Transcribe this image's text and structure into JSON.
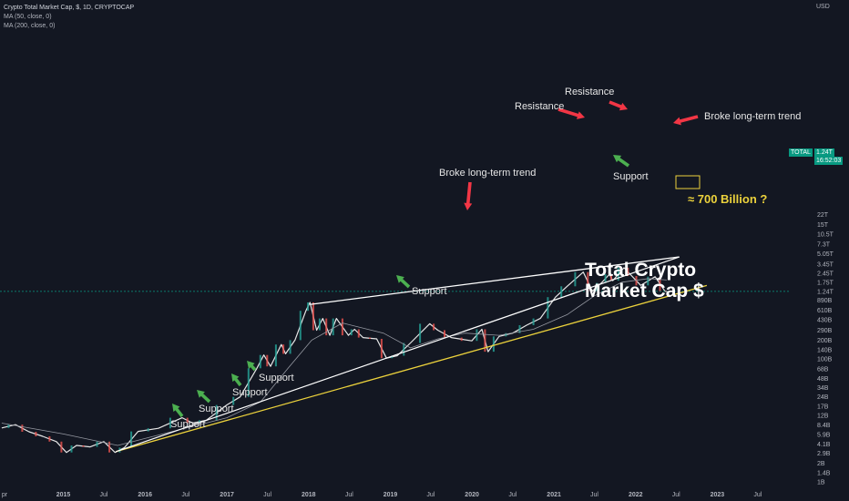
{
  "legend": {
    "title": "Crypto Total Market Cap, $, 1D, CRYPTOCAP",
    "ma50": "MA (50, close, 0)",
    "ma200": "MA (200, close, 0)"
  },
  "price_badge": {
    "symbol": "TOTAL",
    "value": "1.24T",
    "countdown": "16:52:03"
  },
  "annotations": {
    "title": "Total Crypto Market Cap $",
    "projection": "≈ 700 Billion ?",
    "resistance_1": "Resistance",
    "resistance_2": "Resistance",
    "broke_trend_1": "Broke long-term trend",
    "broke_trend_2": "Broke long-term trend",
    "support_1": "Support",
    "support_2": "Support",
    "support_3": "Support",
    "support_4": "Support",
    "support_5": "Support",
    "support_6": "Support"
  },
  "colors": {
    "background": "#131722",
    "price_line": "#e6e6e6",
    "candle_up": "#26a69a",
    "candle_down": "#ef5350",
    "trendline": "#ffffff",
    "support_line": "#ecd23c",
    "arrow_resistance": "#f23645",
    "arrow_support": "#4caf50",
    "ma_line": "#9598a1",
    "current_price_line": "#089981"
  },
  "chart_data": {
    "type": "line",
    "x_axis": {
      "tick_labels": [
        "pr",
        "2015",
        "Jul",
        "2016",
        "Jul",
        "2017",
        "Jul",
        "2018",
        "Jul",
        "2019",
        "Jul",
        "2020",
        "Jul",
        "2021",
        "Jul",
        "2022",
        "Jul",
        "2023",
        "Jul"
      ]
    },
    "y_axis": {
      "scale": "log",
      "unit": "USD",
      "tick_labels": [
        "22T",
        "15T",
        "10.5T",
        "7.3T",
        "5.05T",
        "3.45T",
        "2.45T",
        "1.75T",
        "1.24T",
        "890B",
        "610B",
        "430B",
        "290B",
        "200B",
        "140B",
        "100B",
        "68B",
        "48B",
        "34B",
        "24B",
        "17B",
        "12B",
        "8.4B",
        "5.9B",
        "4.1B",
        "2.9B",
        "2B",
        "1.4B",
        "1B"
      ],
      "tick_values": [
        22000000000000.0,
        15000000000000.0,
        10500000000000.0,
        7300000000000.0,
        5050000000000.0,
        3450000000000.0,
        2450000000000.0,
        1750000000000.0,
        1240000000000.0,
        890000000000.0,
        610000000000.0,
        430000000000.0,
        290000000000.0,
        200000000000.0,
        140000000000.0,
        100000000000.0,
        68000000000.0,
        48000000000.0,
        34000000000.0,
        24000000000.0,
        17000000000.0,
        12000000000.0,
        8400000000.0,
        5900000000.0,
        4100000000.0,
        2900000000.0,
        2000000000.0,
        1400000000.0,
        1000000000.0
      ]
    },
    "grid": false,
    "series": [
      {
        "values_in_usd": [
          [
            "2014-04-01",
            7500000000.0
          ],
          [
            "2014-06-01",
            8500000000.0
          ],
          [
            "2014-08-01",
            6500000000.0
          ],
          [
            "2014-10-01",
            5500000000.0
          ],
          [
            "2014-12-01",
            4500000000.0
          ],
          [
            "2015-01-15",
            3000000000.0
          ],
          [
            "2015-03-01",
            3900000000.0
          ],
          [
            "2015-05-01",
            3700000000.0
          ],
          [
            "2015-07-01",
            4500000000.0
          ],
          [
            "2015-08-20",
            3000000000.0
          ],
          [
            "2015-10-01",
            3600000000.0
          ],
          [
            "2015-12-01",
            6600000000.0
          ],
          [
            "2016-03-01",
            7400000000.0
          ],
          [
            "2016-06-15",
            11000000000.0
          ],
          [
            "2016-08-01",
            9000000000.0
          ],
          [
            "2016-10-01",
            10000000000.0
          ],
          [
            "2016-12-31",
            17700000000.0
          ],
          [
            "2017-03-01",
            24000000000.0
          ],
          [
            "2017-05-15",
            70000000000.0
          ],
          [
            "2017-06-15",
            115000000000.0
          ],
          [
            "2017-07-15",
            75000000000.0
          ],
          [
            "2017-09-01",
            170000000000.0
          ],
          [
            "2017-09-20",
            120000000000.0
          ],
          [
            "2017-11-01",
            200000000000.0
          ],
          [
            "2017-12-20",
            600000000000.0
          ],
          [
            "2018-01-07",
            820000000000.0
          ],
          [
            "2018-02-06",
            290000000000.0
          ],
          [
            "2018-03-05",
            450000000000.0
          ],
          [
            "2018-04-06",
            240000000000.0
          ],
          [
            "2018-05-05",
            450000000000.0
          ],
          [
            "2018-06-28",
            240000000000.0
          ],
          [
            "2018-07-25",
            300000000000.0
          ],
          [
            "2018-09-01",
            220000000000.0
          ],
          [
            "2018-11-01",
            210000000000.0
          ],
          [
            "2018-12-15",
            102000000000.0
          ],
          [
            "2019-02-01",
            112000000000.0
          ],
          [
            "2019-04-01",
            180000000000.0
          ],
          [
            "2019-06-26",
            370000000000.0
          ],
          [
            "2019-08-01",
            290000000000.0
          ],
          [
            "2019-10-01",
            220000000000.0
          ],
          [
            "2019-12-31",
            195000000000.0
          ],
          [
            "2020-02-14",
            300000000000.0
          ],
          [
            "2020-03-13",
            130000000000.0
          ],
          [
            "2020-05-01",
            230000000000.0
          ],
          [
            "2020-07-01",
            260000000000.0
          ],
          [
            "2020-09-01",
            350000000000.0
          ],
          [
            "2020-11-01",
            450000000000.0
          ],
          [
            "2021-01-08",
            1000000000000.0
          ],
          [
            "2021-03-01",
            1500000000000.0
          ],
          [
            "2021-05-12",
            2550000000000.0
          ],
          [
            "2021-06-22",
            1250000000000.0
          ],
          [
            "2021-08-01",
            1700000000000.0
          ],
          [
            "2021-09-06",
            2350000000000.0
          ],
          [
            "2021-09-21",
            1850000000000.0
          ],
          [
            "2021-11-10",
            3000000000000.0
          ],
          [
            "2021-12-15",
            2200000000000.0
          ],
          [
            "2022-01-24",
            1550000000000.0
          ],
          [
            "2022-03-29",
            2150000000000.0
          ],
          [
            "2022-05-12",
            1250000000000.0
          ],
          [
            "2022-05-20",
            1240000000000.0
          ]
        ]
      },
      {
        "name": "MA (200, close, 0)",
        "values_in_usd": [
          [
            "2014-04-01",
            9000000000.0
          ],
          [
            "2015-01-01",
            6000000000.0
          ],
          [
            "2015-09-01",
            3900000000.0
          ],
          [
            "2016-06-01",
            7000000000.0
          ],
          [
            "2017-01-01",
            11000000000.0
          ],
          [
            "2017-06-01",
            20000000000.0
          ],
          [
            "2017-10-01",
            70000000000.0
          ],
          [
            "2018-01-15",
            200000000000.0
          ],
          [
            "2018-06-01",
            380000000000.0
          ],
          [
            "2018-12-01",
            260000000000.0
          ],
          [
            "2019-04-01",
            150000000000.0
          ],
          [
            "2019-08-01",
            210000000000.0
          ],
          [
            "2019-12-01",
            260000000000.0
          ],
          [
            "2020-05-01",
            240000000000.0
          ],
          [
            "2020-10-01",
            300000000000.0
          ],
          [
            "2021-03-01",
            520000000000.0
          ],
          [
            "2021-07-01",
            1050000000000.0
          ],
          [
            "2021-11-01",
            1750000000000.0
          ],
          [
            "2022-03-01",
            2000000000000.0
          ],
          [
            "2022-05-20",
            1900000000000.0
          ]
        ]
      }
    ]
  }
}
